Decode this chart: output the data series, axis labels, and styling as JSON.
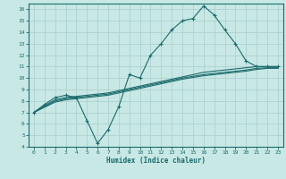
{
  "bg_color": "#c8e8e5",
  "grid_color": "#a8ceca",
  "line_color": "#1a6b6b",
  "xlabel": "Humidex (Indice chaleur)",
  "xlim": [
    -0.5,
    23.5
  ],
  "ylim": [
    4,
    16.5
  ],
  "xticks": [
    0,
    1,
    2,
    3,
    4,
    5,
    6,
    7,
    8,
    9,
    10,
    11,
    12,
    13,
    14,
    15,
    16,
    17,
    18,
    19,
    20,
    21,
    22,
    23
  ],
  "yticks": [
    4,
    5,
    6,
    7,
    8,
    9,
    10,
    11,
    12,
    13,
    14,
    15,
    16
  ],
  "line1_x": [
    0,
    1,
    2,
    3,
    4,
    5,
    6,
    7,
    8,
    9,
    10,
    11,
    12,
    13,
    14,
    15,
    16,
    17,
    18,
    19,
    20,
    21,
    22,
    23
  ],
  "line1_y": [
    7.0,
    7.7,
    8.3,
    8.5,
    8.3,
    6.3,
    4.3,
    5.5,
    7.5,
    10.3,
    10.0,
    12.0,
    13.0,
    14.2,
    15.0,
    15.2,
    16.3,
    15.5,
    14.2,
    13.0,
    11.5,
    11.0,
    11.0,
    11.0
  ],
  "line2_x": [
    0,
    1,
    2,
    3,
    4,
    5,
    6,
    7,
    8,
    9,
    10,
    11,
    12,
    13,
    14,
    15,
    16,
    17,
    18,
    19,
    20,
    21,
    22,
    23
  ],
  "line2_y": [
    7.0,
    7.6,
    8.1,
    8.3,
    8.4,
    8.5,
    8.6,
    8.7,
    8.9,
    9.1,
    9.3,
    9.5,
    9.7,
    9.9,
    10.1,
    10.3,
    10.5,
    10.6,
    10.7,
    10.8,
    10.9,
    11.0,
    11.0,
    11.0
  ],
  "line3_x": [
    0,
    1,
    2,
    3,
    4,
    5,
    6,
    7,
    8,
    9,
    10,
    11,
    12,
    13,
    14,
    15,
    16,
    17,
    18,
    19,
    20,
    21,
    22,
    23
  ],
  "line3_y": [
    7.0,
    7.5,
    8.0,
    8.2,
    8.3,
    8.4,
    8.5,
    8.6,
    8.8,
    9.0,
    9.2,
    9.4,
    9.6,
    9.8,
    10.0,
    10.15,
    10.3,
    10.4,
    10.5,
    10.6,
    10.7,
    10.85,
    10.9,
    10.9
  ],
  "line4_x": [
    0,
    1,
    2,
    3,
    4,
    5,
    6,
    7,
    8,
    9,
    10,
    11,
    12,
    13,
    14,
    15,
    16,
    17,
    18,
    19,
    20,
    21,
    22,
    23
  ],
  "line4_y": [
    7.0,
    7.45,
    7.9,
    8.1,
    8.2,
    8.3,
    8.4,
    8.5,
    8.7,
    8.9,
    9.1,
    9.3,
    9.5,
    9.7,
    9.9,
    10.05,
    10.2,
    10.3,
    10.4,
    10.5,
    10.6,
    10.75,
    10.85,
    10.85
  ]
}
